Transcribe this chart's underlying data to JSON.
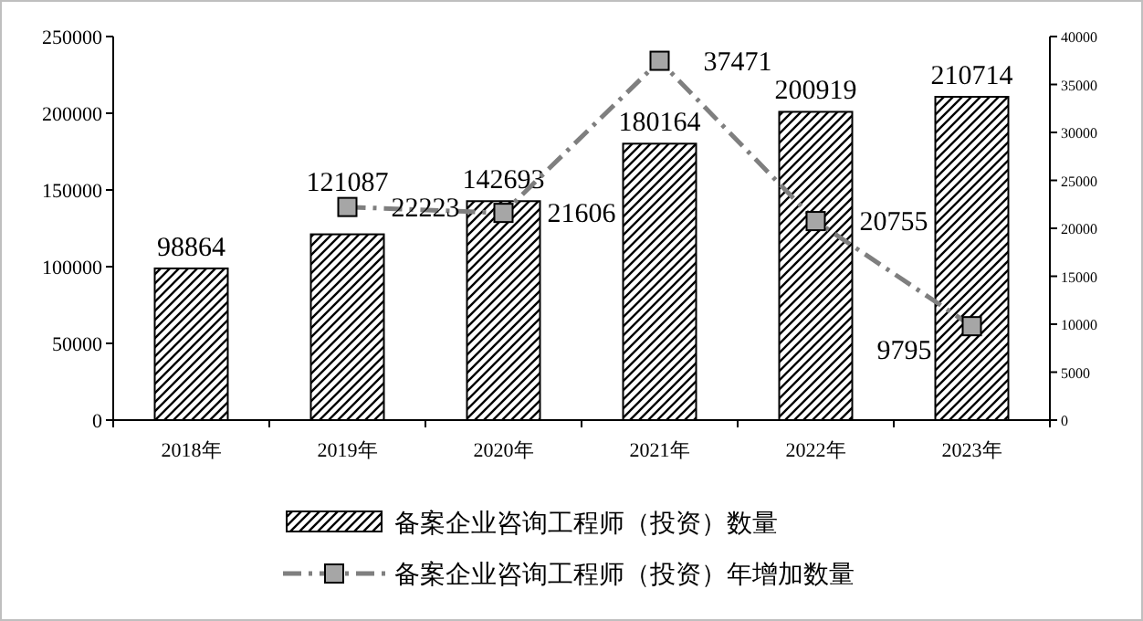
{
  "chart_data": {
    "type": "bar",
    "categories": [
      "2018年",
      "2019年",
      "2020年",
      "2021年",
      "2022年",
      "2023年"
    ],
    "series": [
      {
        "name": "备案企业咨询工程师（投资）数量",
        "color": "#000000",
        "values": [
          98864,
          121087,
          142693,
          180164,
          200919,
          210714
        ]
      },
      {
        "name": "备案企业咨询工程师（投资）年增加数量",
        "type": "line",
        "axis": "y2",
        "color": "#7f7f7f",
        "marker": "square",
        "line_style": "dashed",
        "values": [
          null,
          22223,
          21606,
          37471,
          20755,
          9795
        ]
      }
    ],
    "ylim": [
      0,
      250000
    ],
    "yticks": [
      0,
      50000,
      100000,
      150000,
      200000,
      250000
    ],
    "y2lim": [
      0,
      40000
    ],
    "y2ticks": [
      0,
      5000,
      10000,
      15000,
      20000,
      25000,
      30000,
      35000,
      40000
    ],
    "data_labels": true,
    "legend": "bottom",
    "grid": false
  }
}
